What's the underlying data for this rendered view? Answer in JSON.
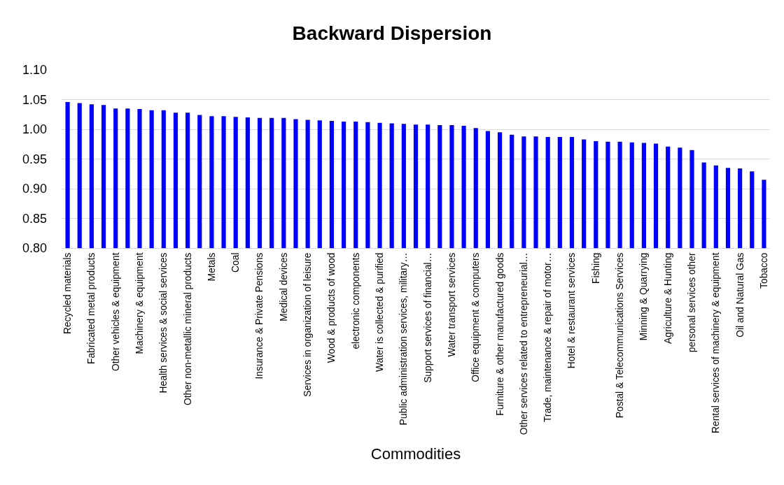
{
  "chart_data": {
    "type": "bar",
    "title": "Backward Dispersion",
    "xlabel": "Commodities",
    "categories": [
      "Recycled materials",
      null,
      "Fabricated metal products",
      null,
      "Other vehicles & equipment",
      null,
      "Machinery & equipment",
      null,
      "Health services & social services",
      null,
      "Other non-metallic mineral products",
      null,
      "Metals",
      null,
      "Coal",
      null,
      "Insurance & Private Pensions",
      null,
      "Medical devices",
      null,
      "Services in organization of leisure",
      null,
      "Wood & products of wood",
      null,
      "electronic components",
      null,
      "Water is collected & purified",
      null,
      "Public administration services, military…",
      null,
      "Support services of financial…",
      null,
      "Water transport services",
      null,
      "Office equipment & computers",
      null,
      "Furniture & other manufactured goods",
      null,
      "Other services related to entrepreneurial…",
      null,
      "Trade, maintenance & repair of motor…",
      null,
      "Hotel & restaurant services",
      null,
      "Fishing",
      null,
      "Postal & Telecommunications Services",
      null,
      "Minning & Quarrying",
      null,
      "Agriculture & Hunting",
      null,
      "personal services other",
      null,
      "Rental services of machinery & equipment",
      null,
      "Oil and Natural Gas",
      null,
      "Tobacco"
    ],
    "values": [
      1.046,
      1.044,
      1.042,
      1.041,
      1.035,
      1.035,
      1.034,
      1.032,
      1.032,
      1.028,
      1.028,
      1.024,
      1.022,
      1.022,
      1.021,
      1.02,
      1.019,
      1.019,
      1.019,
      1.017,
      1.016,
      1.015,
      1.014,
      1.013,
      1.013,
      1.012,
      1.011,
      1.01,
      1.009,
      1.008,
      1.008,
      1.007,
      1.007,
      1.006,
      1.002,
      0.997,
      0.995,
      0.991,
      0.988,
      0.988,
      0.987,
      0.987,
      0.987,
      0.983,
      0.98,
      0.979,
      0.979,
      0.978,
      0.977,
      0.976,
      0.971,
      0.969,
      0.965,
      0.944,
      0.939,
      0.935,
      0.934,
      0.929,
      0.915
    ],
    "color": "#0000ff",
    "ylim": [
      0.8,
      1.1
    ],
    "yticks": [
      {
        "value": 0.8,
        "label": "0.80"
      },
      0.85,
      {
        "value": 0.9,
        "label": "0.90"
      },
      0.95,
      {
        "value": 1.0,
        "label": "1.00"
      },
      1.05,
      {
        "value": 1.1,
        "label": "1.10"
      }
    ],
    "grid": "y"
  }
}
